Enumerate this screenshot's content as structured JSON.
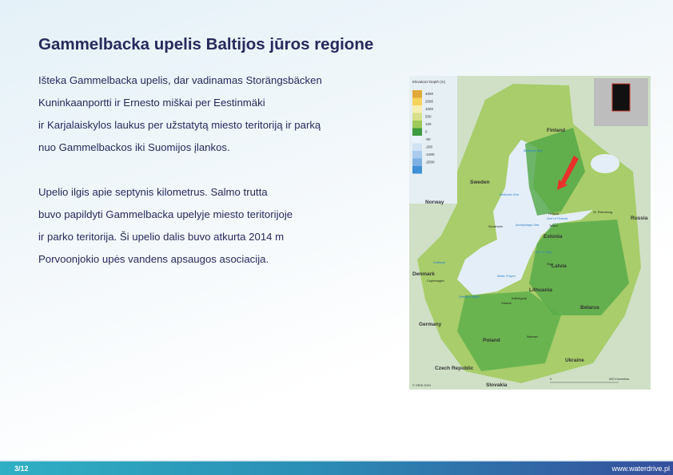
{
  "slide": {
    "title": "Gammelbacka upelis Baltijos jūros regione",
    "paragraph1": [
      "Išteka Gammelbacka upelis, dar vadinamas Storängsbäcken",
      "Kuninkaanportti ir Ernesto miškai per Eestinmäki",
      "ir Karjalaiskylos laukus per užstatytą miesto teritoriją ir parką",
      "nuo Gammelbackos iki Suomijos įlankos."
    ],
    "paragraph2": [
      "Upelio ilgis apie septynis kilometrus. Salmo trutta",
      "buvo papildyti Gammelbacka upelyje miesto teritorijoje",
      "ir parko teritorija. Ši upelio dalis buvo atkurta 2014 m",
      "Porvoonjokio upės vandens apsaugos asociacija."
    ]
  },
  "map": {
    "legend_title": "Elevation/ Depth (m)",
    "legend": [
      {
        "label": "4000",
        "color": "#e2a93a"
      },
      {
        "label": "2000",
        "color": "#f7d35e"
      },
      {
        "label": "1000",
        "color": "#f6eeb0"
      },
      {
        "label": "500",
        "color": "#d6e08a"
      },
      {
        "label": "100",
        "color": "#9cc95a"
      },
      {
        "label": "0",
        "color": "#3d9b3f"
      },
      {
        "label": "-50",
        "color": "#eaf2fa"
      },
      {
        "label": "-200",
        "color": "#cfe2f4"
      },
      {
        "label": "-1000",
        "color": "#a9cbee"
      },
      {
        "label": "-2000",
        "color": "#7fb0e3"
      },
      {
        "label": "",
        "color": "#3f8fd6"
      }
    ],
    "countries": [
      "Finland",
      "Sweden",
      "Norway",
      "Russia",
      "Estonia",
      "Latvia",
      "Lithuania",
      "Denmark",
      "Belarus",
      "Germany",
      "Poland",
      "Ukraine",
      "Czech Republic",
      "Slovakia"
    ],
    "seas": [
      "Bothnian Bay",
      "Bothnian Sea",
      "Archipelago Sea",
      "Gulf of Finland",
      "Gulf of Riga",
      "Baltic Proper",
      "Western Baltic",
      "Kattegat"
    ],
    "cities": [
      "Helsinki",
      "Tallinn",
      "St. Petersburg",
      "Riga",
      "Stockholm",
      "Copenhagen",
      "Kaliningrad",
      "Gdansk",
      "Warsaw"
    ],
    "scale_label": "500 Kilometres",
    "scale_zero": "0",
    "credit": "© GRID 2004",
    "arrow_color": "#e8312a"
  },
  "footer": {
    "page": "3/12",
    "url": "www.waterdrive.pl"
  }
}
